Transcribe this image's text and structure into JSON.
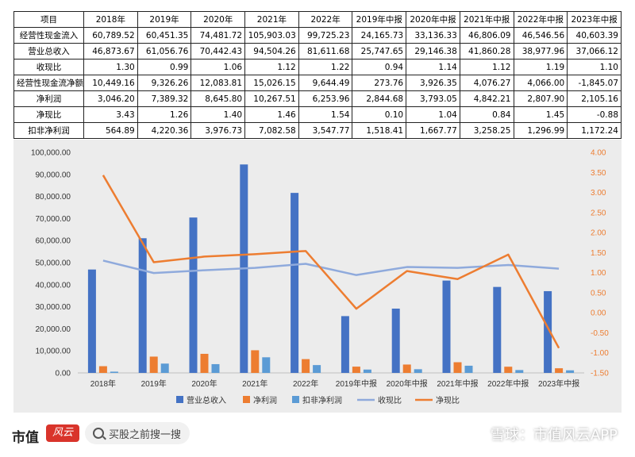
{
  "table": {
    "headers": [
      "项目",
      "2018年",
      "2019年",
      "2020年",
      "2021年",
      "2022年",
      "2019年中报",
      "2020年中报",
      "2021年中报",
      "2022年中报",
      "2023年中报"
    ],
    "rows": [
      {
        "label": "经营性现金流入",
        "values": [
          "60,789.52",
          "60,451.35",
          "74,481.72",
          "105,903.03",
          "99,725.23",
          "24,165.73",
          "33,136.33",
          "46,806.09",
          "46,546.56",
          "40,603.39"
        ]
      },
      {
        "label": "营业总收入",
        "values": [
          "46,873.67",
          "61,056.76",
          "70,442.43",
          "94,504.26",
          "81,611.68",
          "25,747.65",
          "29,146.38",
          "41,860.28",
          "38,977.96",
          "37,066.12"
        ]
      },
      {
        "label": "收现比",
        "values": [
          "1.30",
          "0.99",
          "1.06",
          "1.12",
          "1.22",
          "0.94",
          "1.14",
          "1.12",
          "1.19",
          "1.10"
        ]
      },
      {
        "label": "经营性现金流净额",
        "values": [
          "10,449.16",
          "9,326.26",
          "12,083.81",
          "15,026.15",
          "9,644.49",
          "273.76",
          "3,926.35",
          "4,076.27",
          "4,066.00",
          "-1,845.07"
        ]
      },
      {
        "label": "净利润",
        "values": [
          "3,046.20",
          "7,389.32",
          "8,645.80",
          "10,267.51",
          "6,253.96",
          "2,844.68",
          "3,793.05",
          "4,842.21",
          "2,807.90",
          "2,105.16"
        ]
      },
      {
        "label": "净现比",
        "values": [
          "3.43",
          "1.26",
          "1.40",
          "1.46",
          "1.54",
          "0.10",
          "1.04",
          "0.84",
          "1.45",
          "-0.88"
        ]
      },
      {
        "label": "扣非净利润",
        "values": [
          "564.89",
          "4,220.36",
          "3,976.73",
          "7,082.58",
          "3,547.77",
          "1,518.41",
          "1,667.77",
          "3,258.25",
          "1,296.99",
          "1,172.24"
        ]
      }
    ]
  },
  "chart_data": {
    "type": "bar",
    "categories": [
      "2018年",
      "2019年",
      "2020年",
      "2021年",
      "2022年",
      "2019年中报",
      "2020年中报",
      "2021年中报",
      "2022年中报",
      "2023年中报"
    ],
    "y_left": {
      "ticks": [
        "0.00",
        "10,000.00",
        "20,000.00",
        "30,000.00",
        "40,000.00",
        "50,000.00",
        "60,000.00",
        "70,000.00",
        "80,000.00",
        "90,000.00",
        "100,000.00"
      ],
      "ylim": [
        0,
        100000
      ]
    },
    "y_right": {
      "ticks": [
        "-1.50",
        "-1.00",
        "-0.50",
        "0.00",
        "0.50",
        "1.00",
        "1.50",
        "2.00",
        "2.50",
        "3.00",
        "3.50",
        "4.00"
      ],
      "ylim": [
        -1.5,
        4.0
      ]
    },
    "series": [
      {
        "name": "营业总收入",
        "kind": "bar",
        "axis": "left",
        "color": "#4472c4",
        "values": [
          46873.67,
          61056.76,
          70442.43,
          94504.26,
          81611.68,
          25747.65,
          29146.38,
          41860.28,
          38977.96,
          37066.12
        ]
      },
      {
        "name": "净利润",
        "kind": "bar",
        "axis": "left",
        "color": "#ed7d31",
        "values": [
          3046.2,
          7389.32,
          8645.8,
          10267.51,
          6253.96,
          2844.68,
          3793.05,
          4842.21,
          2807.9,
          2105.16
        ]
      },
      {
        "name": "扣非净利润",
        "kind": "bar",
        "axis": "left",
        "color": "#5b9bd5",
        "values": [
          564.89,
          4220.36,
          3976.73,
          7082.58,
          3547.77,
          1518.41,
          1667.77,
          3258.25,
          1296.99,
          1172.24
        ]
      },
      {
        "name": "收现比",
        "kind": "line",
        "axis": "right",
        "color": "#8faadc",
        "values": [
          1.3,
          0.99,
          1.06,
          1.12,
          1.22,
          0.94,
          1.14,
          1.12,
          1.19,
          1.1
        ]
      },
      {
        "name": "净现比",
        "kind": "line",
        "axis": "right",
        "color": "#ed7d31",
        "values": [
          3.43,
          1.26,
          1.4,
          1.46,
          1.54,
          0.1,
          1.04,
          0.84,
          1.45,
          -0.88
        ]
      }
    ],
    "colors": {
      "panel_bg": "#ececec",
      "left_tick": "#333333",
      "right_tick": "#ed7d31"
    },
    "legend_position": "bottom"
  },
  "footer": {
    "brand": "市值",
    "brand_seal": "风云",
    "search_placeholder": "买股之前搜一搜",
    "watermark_source": "雪球：市值风云APP"
  }
}
